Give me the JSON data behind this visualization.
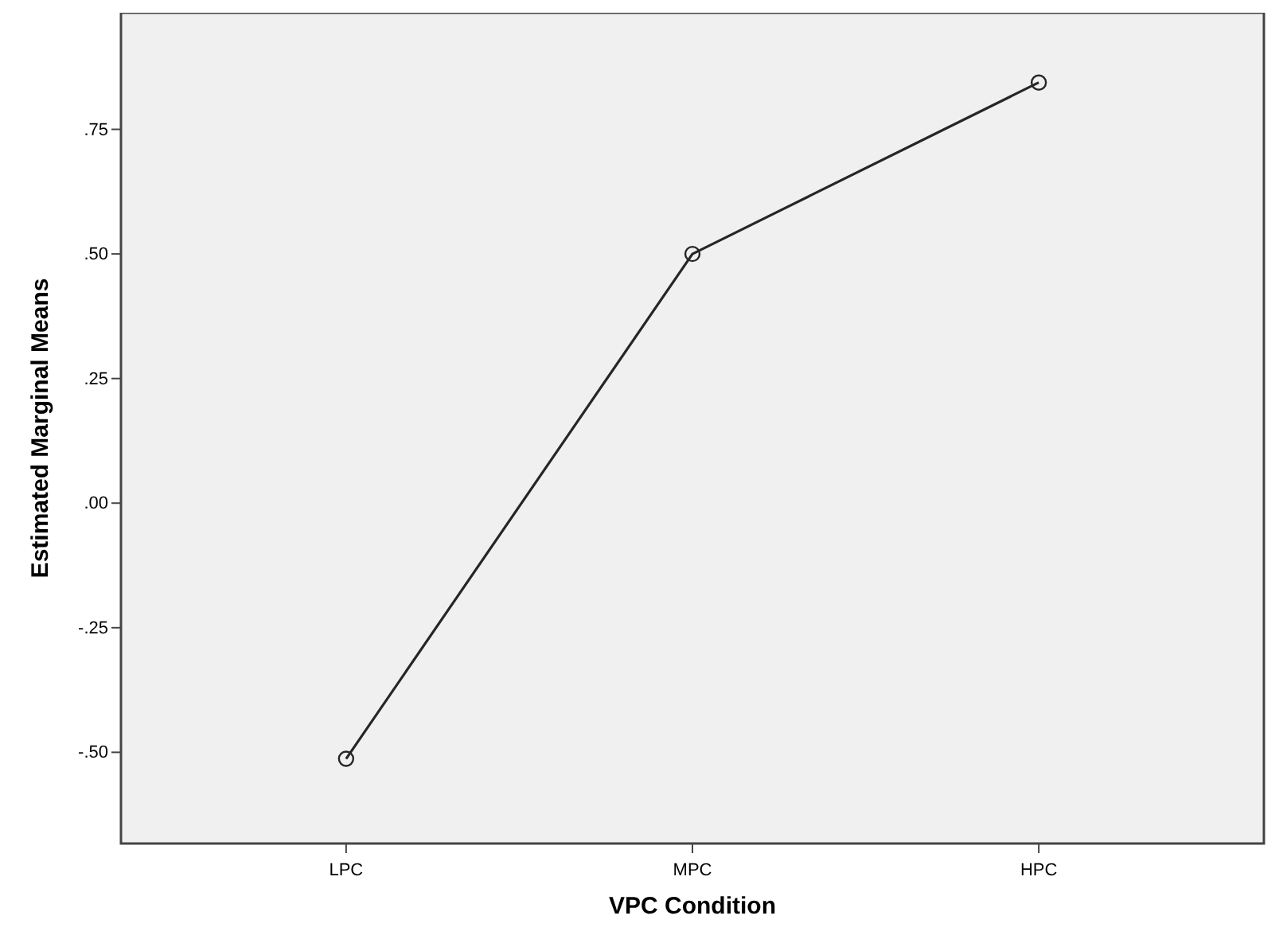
{
  "chart_data": {
    "type": "line",
    "xlabel": "VPC Condition",
    "ylabel": "Estimated Marginal Means",
    "categories": [
      "LPC",
      "MPC",
      "HPC"
    ],
    "series": [
      {
        "color": "#262626",
        "values": [
          -0.513,
          0.5,
          0.844
        ]
      }
    ],
    "ylim": [
      -0.683,
      0.984
    ],
    "yticks": [
      {
        "value": -0.5,
        "label": "-.50"
      },
      {
        "value": -0.25,
        "label": "-.25"
      },
      {
        "value": 0,
        "label": ".00"
      },
      {
        "value": 0.25,
        "label": ".25"
      },
      {
        "value": 0.5,
        "label": ".50"
      },
      {
        "value": 0.75,
        "label": ".75"
      }
    ],
    "marker": "circle",
    "line_style": "solid",
    "grid": false
  }
}
